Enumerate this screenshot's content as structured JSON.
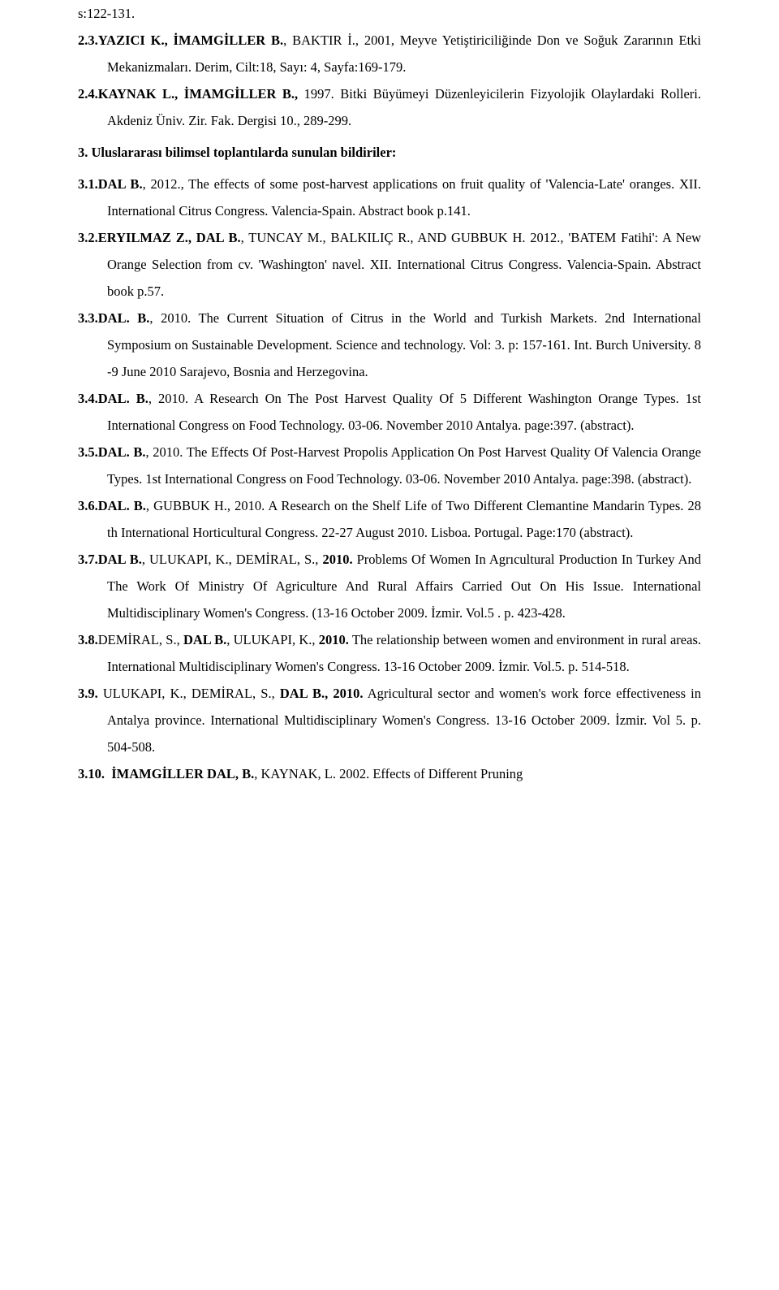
{
  "e0": {
    "line1": "s:122-131.",
    "num": "2.3.",
    "bold": "YAZICI K., İMAMGİLLER B.",
    "rest": ", BAKTIR İ., 2001, Meyve Yetiştiriciliğinde Don ve Soğuk Zararının Etki Mekanizmaları. Derim, Cilt:18, Sayı: 4, Sayfa:169-179."
  },
  "e1": {
    "num": "2.4.",
    "bold": "KAYNAK L., İMAMGİLLER B.,",
    "rest": " 1997. Bitki Büyümeyi Düzenleyicilerin Fizyolojik Olaylardaki Rolleri. Akdeniz Üniv. Zir. Fak. Dergisi 10., 289-299."
  },
  "heading": "3. Uluslararası bilimsel toplantılarda sunulan bildiriler:",
  "e31": {
    "num": "3.1.",
    "bold": "DAL B.",
    "rest": ", 2012., The effects of some post-harvest applications on fruit quality of 'Valencia-Late' oranges. XII. International Citrus Congress. Valencia-Spain. Abstract book p.141."
  },
  "e32": {
    "num": "3.2.",
    "bold": "ERYILMAZ  Z., DAL B.",
    "rest": ", TUNCAY M., BALKILIÇ R., AND GUBBUK H. 2012., 'BATEM Fatihi': A New Orange Selection from cv. 'Washington' navel. XII. International Citrus Congress. Valencia-Spain. Abstract book p.57."
  },
  "e33": {
    "num": "3.3.",
    "bold": "DAL. B.",
    "rest": ", 2010. The Current Situation of Citrus in the World  and Turkish Markets. 2nd International Symposium on Sustainable Development. Science and technology. Vol: 3. p: 157-161. Int. Burch University. 8 -9 June 2010 Sarajevo, Bosnia and Herzegovina."
  },
  "e34": {
    "num": "3.4.",
    "bold": "DAL. B.",
    "rest": ", 2010. A Research On The Post Harvest Quality Of 5 Different Washington Orange Types. 1st International Congress on Food Technology. 03-06. November 2010 Antalya. page:397. (abstract)."
  },
  "e35": {
    "num": "3.5.",
    "bold": "DAL. B.",
    "rest": ", 2010. The Effects Of Post-Harvest Propolis Application On Post Harvest Quality Of Valencia Orange Types.  1st International Congress on Food Technology. 03-06. November 2010 Antalya. page:398. (abstract)."
  },
  "e36": {
    "num": "3.6.",
    "bold": "DAL. B.",
    "rest": ", GUBBUK H., 2010. A Research on the Shelf Life of Two Different Clemantine Mandarin Types. 28 th  International Horticultural Congress. 22-27 August 2010. Lisboa. Portugal. Page:170 (abstract)."
  },
  "e37": {
    "num": "3.7.",
    "bold1": "DAL B.",
    "mid": ", ULUKAPI, K., DEMİRAL, S., ",
    "bold2": "2010.",
    "rest": " Problems Of Women In Agrıcultural Production In Turkey  And  The Work Of Ministry Of Agriculture And Rural Affairs Carried Out On His Issue. International Multidisciplinary Women's Congress. (13-16 October 2009. İzmir. Vol.5 . p. 423-428."
  },
  "e38": {
    "num": "3.8.",
    "pre": "DEMİRAL, S., ",
    "bold": "DAL B.",
    "mid": ", ULUKAPI, K., ",
    "bold2": "2010.",
    "rest": "  The relationship between women and environment in rural areas. International Multidisciplinary Women's Congress. 13-16 October 2009. İzmir. Vol.5. p. 514-518."
  },
  "e39": {
    "num": "3.9.",
    "pre": " ULUKAPI, K., DEMİRAL, S., ",
    "bold": "DAL B., 2010.",
    "rest": " Agricultural sector and women's work force effectiveness in Antalya province. International Multidisciplinary Women's Congress. 13-16 October 2009. İzmir. Vol 5. p. 504-508."
  },
  "e310": {
    "num": "3.10.",
    "bold": "İMAMGİLLER DAL, B.",
    "rest": ", KAYNAK, L. 2002. Effects of Different Pruning"
  }
}
